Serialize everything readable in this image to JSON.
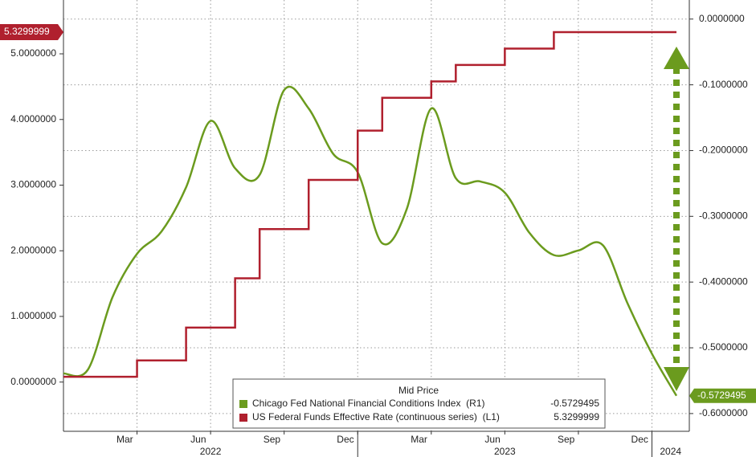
{
  "chart_data": {
    "type": "line",
    "x": [
      "2022-01",
      "2022-02",
      "2022-03",
      "2022-04",
      "2022-05",
      "2022-06",
      "2022-07",
      "2022-08",
      "2022-09",
      "2022-10",
      "2022-11",
      "2022-12",
      "2023-01",
      "2023-02",
      "2023-03",
      "2023-04",
      "2023-05",
      "2023-06",
      "2023-07",
      "2023-08",
      "2023-09",
      "2023-10",
      "2023-11",
      "2023-12",
      "2024-01",
      "2024-02"
    ],
    "xlim": [
      "2022-01",
      "2024-02"
    ],
    "xticks": [
      {
        "value": "2022-03",
        "label": "Mar"
      },
      {
        "value": "2022-06",
        "label": "Jun"
      },
      {
        "value": "2022-09",
        "label": "Sep"
      },
      {
        "value": "2022-12",
        "label": "Dec"
      },
      {
        "value": "2023-03",
        "label": "Mar"
      },
      {
        "value": "2023-06",
        "label": "Jun"
      },
      {
        "value": "2023-09",
        "label": "Sep"
      },
      {
        "value": "2023-12",
        "label": "Dec"
      }
    ],
    "years": [
      "2022",
      "2023",
      "2024"
    ],
    "ylim": [
      -0.75,
      5.82
    ],
    "yticks": [
      {
        "value": 0,
        "label": "0.0000000"
      },
      {
        "value": 1,
        "label": "1.0000000"
      },
      {
        "value": 2,
        "label": "2.0000000"
      },
      {
        "value": 3,
        "label": "3.0000000"
      },
      {
        "value": 4,
        "label": "4.0000000"
      },
      {
        "value": 5,
        "label": "5.0000000"
      }
    ],
    "y2lim": [
      -0.627,
      0.029
    ],
    "y2ticks": [
      {
        "value": 0,
        "label": "0.0000000"
      },
      {
        "value": -0.1,
        "label": "-0.1000000"
      },
      {
        "value": -0.2,
        "label": "-0.2000000"
      },
      {
        "value": -0.3,
        "label": "-0.3000000"
      },
      {
        "value": -0.4,
        "label": "-0.4000000"
      },
      {
        "value": -0.5,
        "label": "-0.5000000"
      },
      {
        "value": -0.6,
        "label": "-0.6000000"
      }
    ],
    "grid": true,
    "legend_title": "Mid Price",
    "series": [
      {
        "name": "Chicago Fed National Financial Conditions Index  (R1)",
        "color": "#6b9b1e",
        "axis": "y2",
        "values": [
          -0.539,
          -0.533,
          -0.423,
          -0.357,
          -0.323,
          -0.256,
          -0.155,
          -0.227,
          -0.237,
          -0.108,
          -0.136,
          -0.205,
          -0.233,
          -0.341,
          -0.289,
          -0.136,
          -0.242,
          -0.247,
          -0.264,
          -0.325,
          -0.359,
          -0.352,
          -0.344,
          -0.432,
          -0.509,
          -0.5729495
        ]
      },
      {
        "name": "US Federal Funds Effective Rate (continuous series)  (L1)",
        "color": "#b0202e",
        "axis": "y",
        "values": [
          0.08,
          0.08,
          0.08,
          0.33,
          0.33,
          0.83,
          0.83,
          1.58,
          2.33,
          2.33,
          3.08,
          3.08,
          3.83,
          4.33,
          4.33,
          4.58,
          4.83,
          4.83,
          5.08,
          5.08,
          5.33,
          5.33,
          5.33,
          5.33,
          5.33,
          5.3299999
        ]
      }
    ]
  }
}
